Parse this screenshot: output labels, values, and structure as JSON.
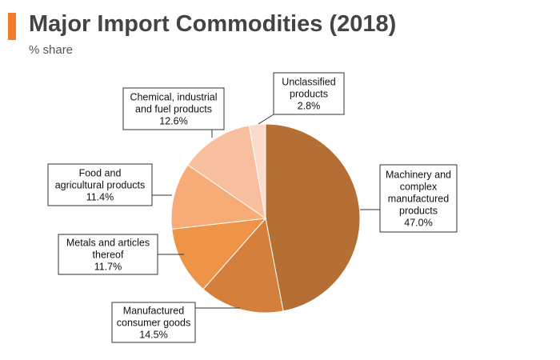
{
  "header": {
    "title": "Major Import Commodities (2018)",
    "subtitle": "% share",
    "accent_color": "#F07D2A"
  },
  "chart_data": {
    "type": "pie",
    "title": "Major Import Commodities (2018)",
    "subtitle": "% share",
    "slices": [
      {
        "name": "Machinery and complex manufactured products",
        "value": 47.0,
        "label_lines": [
          "Machinery and",
          "complex",
          "manufactured",
          "products"
        ],
        "value_label": "47.0%",
        "color": "#B56E33"
      },
      {
        "name": "Manufactured consumer goods",
        "value": 14.5,
        "label_lines": [
          "Manufactured",
          "consumer goods"
        ],
        "value_label": "14.5%",
        "color": "#D57F3C"
      },
      {
        "name": "Metals and articles thereof",
        "value": 11.7,
        "label_lines": [
          "Metals and articles",
          "thereof"
        ],
        "value_label": "11.7%",
        "color": "#EE9448"
      },
      {
        "name": "Food and agricultural products",
        "value": 11.4,
        "label_lines": [
          "Food and",
          "agricultural products"
        ],
        "value_label": "11.4%",
        "color": "#F7AC77"
      },
      {
        "name": "Chemical, industrial and fuel products",
        "value": 12.6,
        "label_lines": [
          "Chemical, industrial",
          "and fuel products"
        ],
        "value_label": "12.6%",
        "color": "#F8BF9F"
      },
      {
        "name": "Unclassified products",
        "value": 2.8,
        "label_lines": [
          "Unclassified",
          "products"
        ],
        "value_label": "2.8%",
        "color": "#FBDCCB"
      }
    ]
  }
}
